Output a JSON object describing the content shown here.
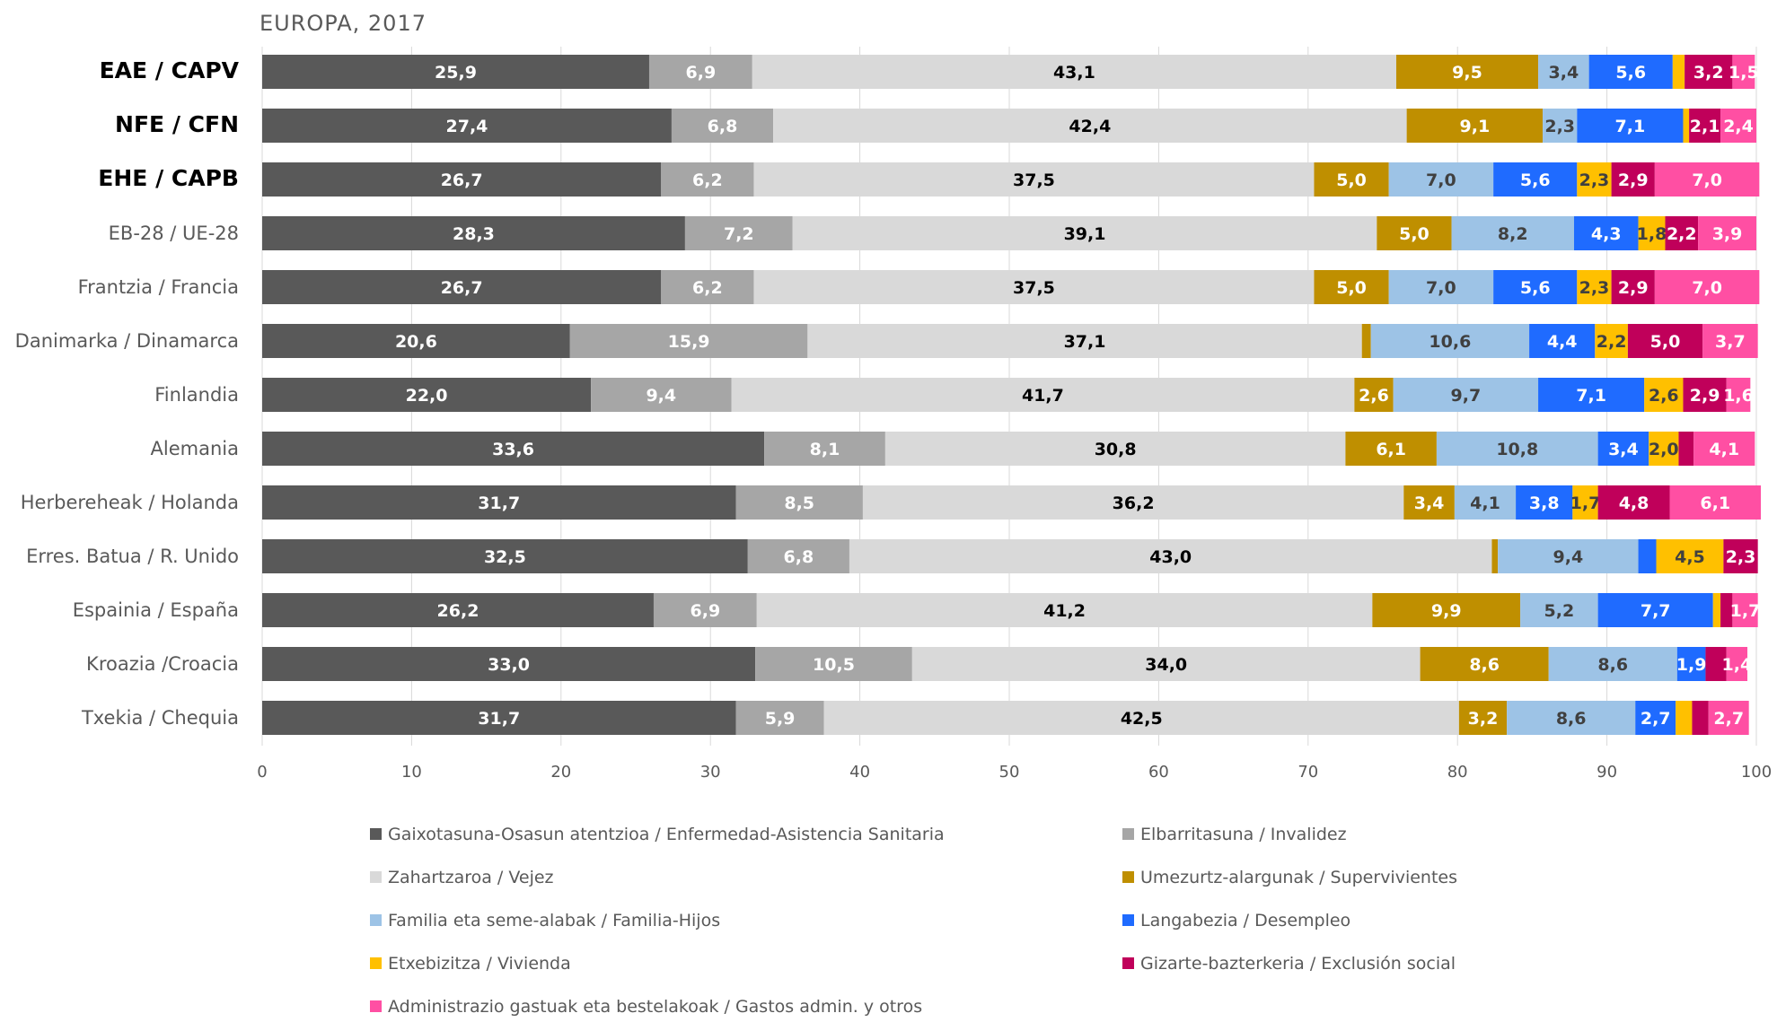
{
  "chart_data": {
    "type": "bar",
    "orientation": "horizontal",
    "stacked": true,
    "title": "EUROPA, 2017",
    "xlim": [
      0,
      100
    ],
    "xticks": [
      0,
      10,
      20,
      30,
      40,
      50,
      60,
      70,
      80,
      90,
      100
    ],
    "grid": true,
    "legend_position": "bottom",
    "categories": [
      "EAE / CAPV",
      "NFE / CFN",
      "EHE / CAPB",
      "EB-28 / UE-28",
      "Frantzia / Francia",
      "Danimarka / Dinamarca",
      "Finlandia",
      "Alemania",
      "Herbereheak / Holanda",
      "Erres. Batua / R. Unido",
      "Espainia / España",
      "Kroazia /Croacia",
      "Txekia / Chequia"
    ],
    "bold_categories": [
      "EAE / CAPV",
      "NFE / CFN",
      "EHE / CAPB"
    ],
    "series": [
      {
        "name": "Gaixotasuna-Osasun atentzioa / Enfermedad-Asistencia Sanitaria",
        "color": "#595959",
        "label_color": "#ffffff",
        "values": [
          25.9,
          27.4,
          26.7,
          28.3,
          26.7,
          20.6,
          22.0,
          33.6,
          31.7,
          32.5,
          26.2,
          33.0,
          31.7
        ],
        "labels": [
          "25,9",
          "27,4",
          "26,7",
          "28,3",
          "26,7",
          "20,6",
          "22,0",
          "33,6",
          "31,7",
          "32,5",
          "26,2",
          "33,0",
          "31,7"
        ]
      },
      {
        "name": "Elbarritasuna / Invalidez",
        "color": "#a6a6a6",
        "label_color": "#ffffff",
        "values": [
          6.9,
          6.8,
          6.2,
          7.2,
          6.2,
          15.9,
          9.4,
          8.1,
          8.5,
          6.8,
          6.9,
          10.5,
          5.9
        ],
        "labels": [
          "6,9",
          "6,8",
          "6,2",
          "7,2",
          "6,2",
          "15,9",
          "9,4",
          "8,1",
          "8,5",
          "6,8",
          "6,9",
          "10,5",
          "5,9"
        ]
      },
      {
        "name": "Zahartzaroa / Vejez",
        "color": "#d9d9d9",
        "label_color": "#000000",
        "values": [
          43.1,
          42.4,
          37.5,
          39.1,
          37.5,
          37.1,
          41.7,
          30.8,
          36.2,
          43.0,
          41.2,
          34.0,
          42.5
        ],
        "labels": [
          "43,1",
          "42,4",
          "37,5",
          "39,1",
          "37,5",
          "37,1",
          "41,7",
          "30,8",
          "36,2",
          "43,0",
          "41,2",
          "34,0",
          "42,5"
        ]
      },
      {
        "name": "Umezurtz-alargunak / Supervivientes",
        "color": "#bf8f00",
        "label_color": "#ffffff",
        "values": [
          9.5,
          9.1,
          5.0,
          5.0,
          5.0,
          0.6,
          2.6,
          6.1,
          3.4,
          0.4,
          9.9,
          8.6,
          3.2
        ],
        "labels": [
          "9,5",
          "9,1",
          "5,0",
          "5,0",
          "5,0",
          "",
          "2,6",
          "6,1",
          "3,4",
          "",
          "9,9",
          "8,6",
          "3,2"
        ]
      },
      {
        "name": "Familia eta seme-alabak / Familia-Hijos",
        "color": "#9dc3e6",
        "label_color": "#404040",
        "values": [
          3.4,
          2.3,
          7.0,
          8.2,
          7.0,
          10.6,
          9.7,
          10.8,
          4.1,
          9.4,
          5.2,
          8.6,
          8.6
        ],
        "labels": [
          "3,4",
          "2,3",
          "7,0",
          "8,2",
          "7,0",
          "10,6",
          "9,7",
          "10,8",
          "4,1",
          "9,4",
          "5,2",
          "8,6",
          "8,6"
        ]
      },
      {
        "name": "Langabezia / Desempleo",
        "color": "#1f6bff",
        "label_color": "#ffffff",
        "values": [
          5.6,
          7.1,
          5.6,
          4.3,
          5.6,
          4.4,
          7.1,
          3.4,
          3.8,
          1.2,
          7.7,
          1.9,
          2.7
        ],
        "labels": [
          "5,6",
          "7,1",
          "5,6",
          "4,3",
          "5,6",
          "4,4",
          "7,1",
          "3,4",
          "3,8",
          "",
          "7,7",
          "1,9",
          "2,7"
        ]
      },
      {
        "name": "Etxebizitza / Vivienda",
        "color": "#ffc000",
        "label_color": "#404040",
        "values": [
          0.8,
          0.4,
          2.3,
          1.8,
          2.3,
          2.2,
          2.6,
          2.0,
          1.7,
          4.5,
          0.5,
          0.0,
          1.1
        ],
        "labels": [
          "",
          "",
          "2,3",
          "1,8",
          "2,3",
          "2,2",
          "2,6",
          "2,0",
          "1,7",
          "4,5",
          "",
          "",
          ""
        ]
      },
      {
        "name": "Gizarte-bazterkeria / Exclusión social",
        "color": "#c0005a",
        "label_color": "#ffffff",
        "values": [
          3.2,
          2.1,
          2.9,
          2.2,
          2.9,
          5.0,
          2.9,
          1.0,
          4.8,
          2.3,
          0.8,
          1.4,
          1.1
        ],
        "labels": [
          "3,2",
          "2,1",
          "2,9",
          "2,2",
          "2,9",
          "5,0",
          "2,9",
          "",
          "4,8",
          "2,3",
          "",
          "",
          ""
        ]
      },
      {
        "name": "Administrazio gastuak eta bestelakoak / Gastos admin. y otros",
        "color": "#ff4fa3",
        "label_color": "#ffffff",
        "values": [
          1.5,
          2.4,
          7.0,
          3.9,
          7.0,
          3.7,
          1.6,
          4.1,
          6.1,
          0.0,
          1.7,
          1.4,
          2.7
        ],
        "labels": [
          "1,5",
          "2,4",
          "7,0",
          "3,9",
          "7,0",
          "3,7",
          "1,6",
          "4,1",
          "6,1",
          "",
          "1,7",
          "1,4",
          "2,7"
        ]
      }
    ]
  }
}
